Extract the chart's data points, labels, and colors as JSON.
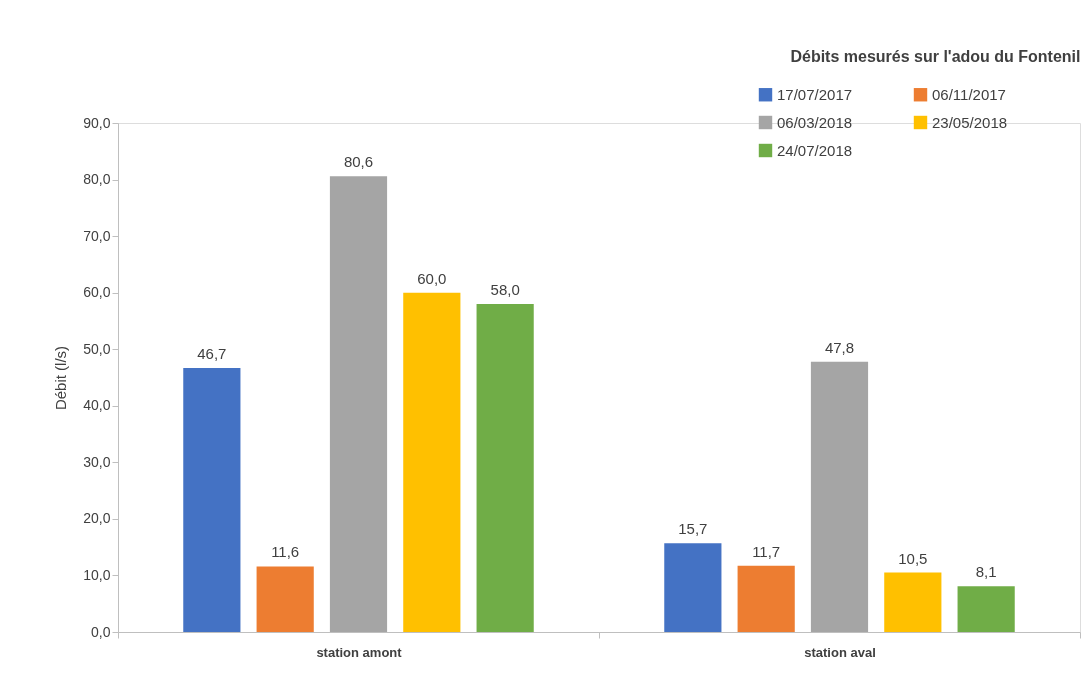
{
  "chart_data": {
    "type": "bar",
    "title": "Débits mesurés sur l'adou du Fontenil",
    "ylabel": "Débit (l/s)",
    "categories": [
      "station amont",
      "station aval"
    ],
    "series": [
      {
        "name": "17/07/2017",
        "color": "#4472c4",
        "values": [
          46.7,
          15.7
        ],
        "value_labels": [
          "46,7",
          "15,7"
        ]
      },
      {
        "name": "06/11/2017",
        "color": "#ed7d31",
        "values": [
          11.6,
          11.7
        ],
        "value_labels": [
          "11,6",
          "11,7"
        ]
      },
      {
        "name": "06/03/2018",
        "color": "#a5a5a5",
        "values": [
          80.6,
          47.8
        ],
        "value_labels": [
          "80,6",
          "47,8"
        ]
      },
      {
        "name": "23/05/2018",
        "color": "#ffc000",
        "values": [
          60.0,
          10.5
        ],
        "value_labels": [
          "60,0",
          "10,5"
        ]
      },
      {
        "name": "24/07/2018",
        "color": "#70ad47",
        "values": [
          58.0,
          8.1
        ],
        "value_labels": [
          "58,0",
          "8,1"
        ]
      }
    ],
    "ylim": [
      0,
      90
    ],
    "yticks": [
      {
        "value": 0,
        "label": "0,0"
      },
      {
        "value": 10,
        "label": "10,0"
      },
      {
        "value": 20,
        "label": "20,0"
      },
      {
        "value": 30,
        "label": "30,0"
      },
      {
        "value": 40,
        "label": "40,0"
      },
      {
        "value": 50,
        "label": "50,0"
      },
      {
        "value": 60,
        "label": "60,0"
      },
      {
        "value": 70,
        "label": "70,0"
      },
      {
        "value": 80,
        "label": "80,0"
      },
      {
        "value": 90,
        "label": "90,0"
      }
    ],
    "grid": false,
    "legend": "top right"
  }
}
